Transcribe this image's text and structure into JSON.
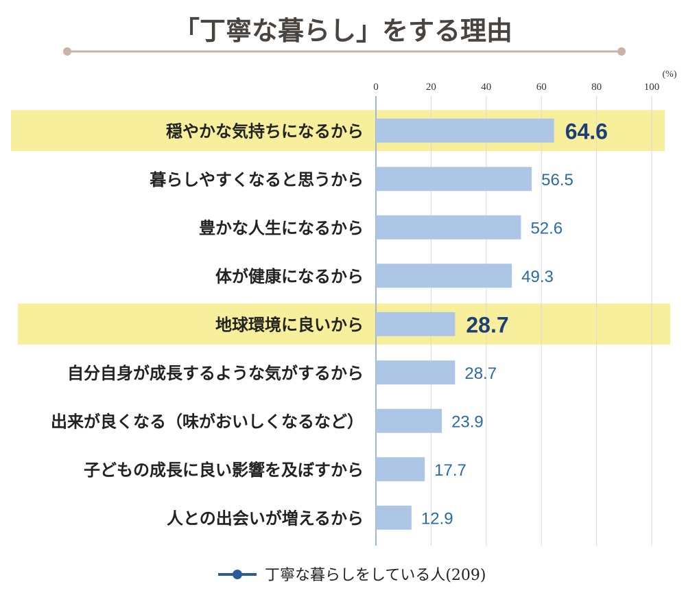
{
  "chart_data": {
    "type": "bar",
    "orientation": "horizontal",
    "title": "「丁寧な暮らし」をする理由",
    "unit": "(%)",
    "xlim": [
      0,
      100
    ],
    "ticks": [
      0,
      20,
      40,
      60,
      80,
      100
    ],
    "tick_labels": [
      "0",
      "20",
      "40",
      "60",
      "80",
      "100"
    ],
    "categories": [
      "穏やかな気持ちになるから",
      "暮らしやすくなると思うから",
      "豊かな人生になるから",
      "体が健康になるから",
      "地球環境に良いから",
      "自分自身が成長するような気がするから",
      "出来が良くなる（味がおいしくなるなど）",
      "子どもの成長に良い影響を及ぼすから",
      "人との出会いが増えるから"
    ],
    "series": [
      {
        "name": "丁寧な暮らしをしている人(209)",
        "values": [
          64.6,
          56.5,
          52.6,
          49.3,
          28.7,
          28.7,
          23.9,
          17.7,
          12.9
        ],
        "value_labels": [
          "64.6",
          "56.5",
          "52.6",
          "49.3",
          "28.7",
          "28.7",
          "23.9",
          "17.7",
          "12.9"
        ]
      }
    ],
    "highlighted": [
      true,
      false,
      false,
      false,
      true,
      false,
      false,
      false,
      false
    ],
    "legend": "bottom-center",
    "grid": true
  },
  "colors": {
    "bar": "#aec6e6",
    "highlight_band": "#f7ef9c",
    "title_line": "#c9b2a6",
    "legend_line": "#2a5c9a",
    "grid": "#d9d9d9",
    "axis": "#9ab8dc"
  }
}
